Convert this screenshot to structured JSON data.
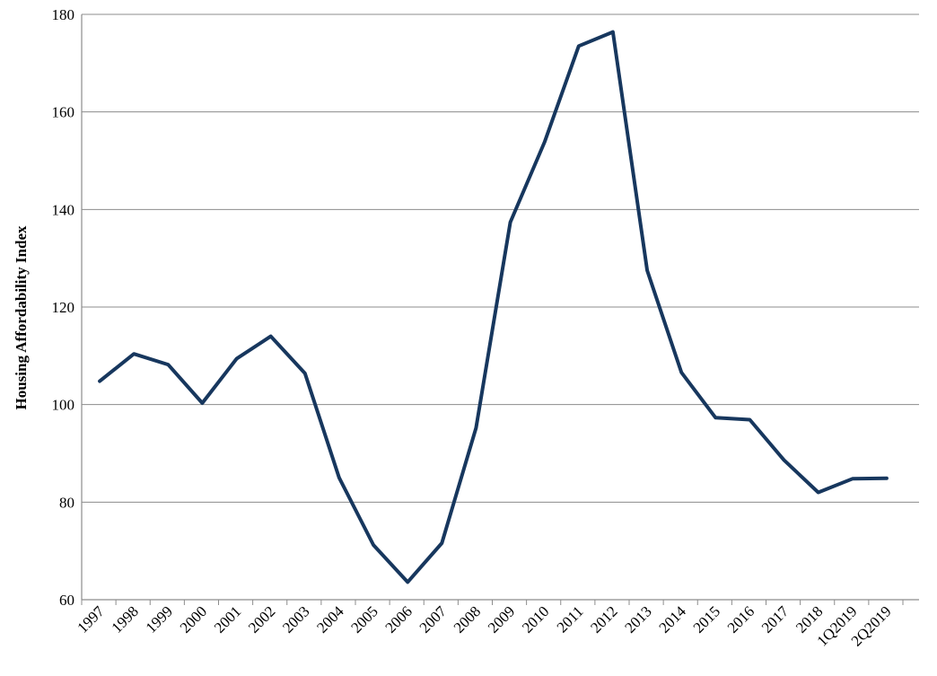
{
  "chart_data": {
    "type": "line",
    "title": "",
    "xlabel": "",
    "ylabel": "Housing Affordability Index",
    "ylim": [
      60,
      180
    ],
    "yticks": [
      60,
      80,
      100,
      120,
      140,
      160,
      180
    ],
    "grid": true,
    "legend": "none",
    "line_color": "#17375e",
    "categories": [
      "1997",
      "1998",
      "1999",
      "2000",
      "2001",
      "2002",
      "2003",
      "2004",
      "2005",
      "2006",
      "2007",
      "2008",
      "2009",
      "2010",
      "2011",
      "2012",
      "2013",
      "2014",
      "2015",
      "2016",
      "2017",
      "2018",
      "1Q2019",
      "2Q2019"
    ],
    "series": [
      {
        "values": [
          104.8,
          110.4,
          108.2,
          100.3,
          109.4,
          114.0,
          106.4,
          85.0,
          71.2,
          63.6,
          71.6,
          95.2,
          137.4,
          153.8,
          173.5,
          176.4,
          127.5,
          106.6,
          97.3,
          96.9,
          88.6,
          82.0,
          84.8,
          84.9
        ]
      }
    ]
  }
}
